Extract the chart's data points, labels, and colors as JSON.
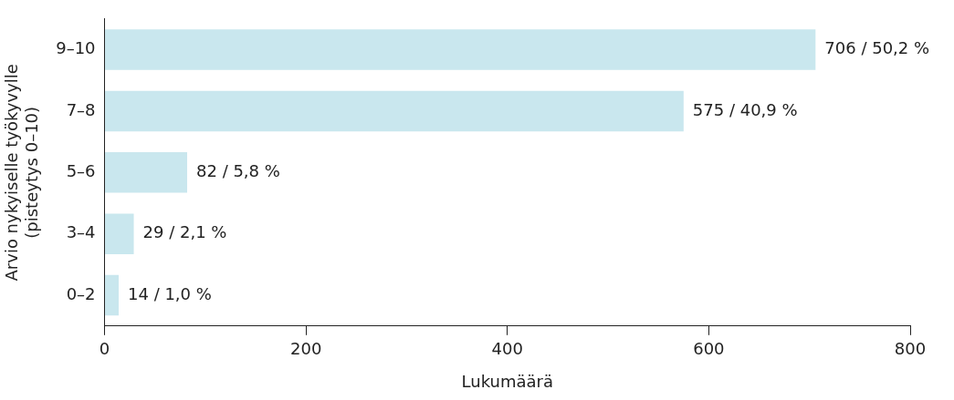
{
  "chart_data": {
    "type": "bar",
    "orientation": "horizontal",
    "categories": [
      "9–10",
      "7–8",
      "5–6",
      "3–4",
      "0–2"
    ],
    "values": [
      706,
      575,
      82,
      29,
      14
    ],
    "value_labels": [
      "706 / 50,2 %",
      "575 / 40,9 %",
      "82 / 5,8 %",
      "29 / 2,1 %",
      "14 / 1,0 %"
    ],
    "color": "#c9e7ee",
    "xlim": [
      0,
      800
    ],
    "xticks": [
      0,
      200,
      400,
      600,
      800
    ],
    "xlabel": "Lukumäärä",
    "ylabel": "Arvio nykyiselle työkyvylle\n(pisteytys 0–10)",
    "grid": false,
    "legend": false
  }
}
